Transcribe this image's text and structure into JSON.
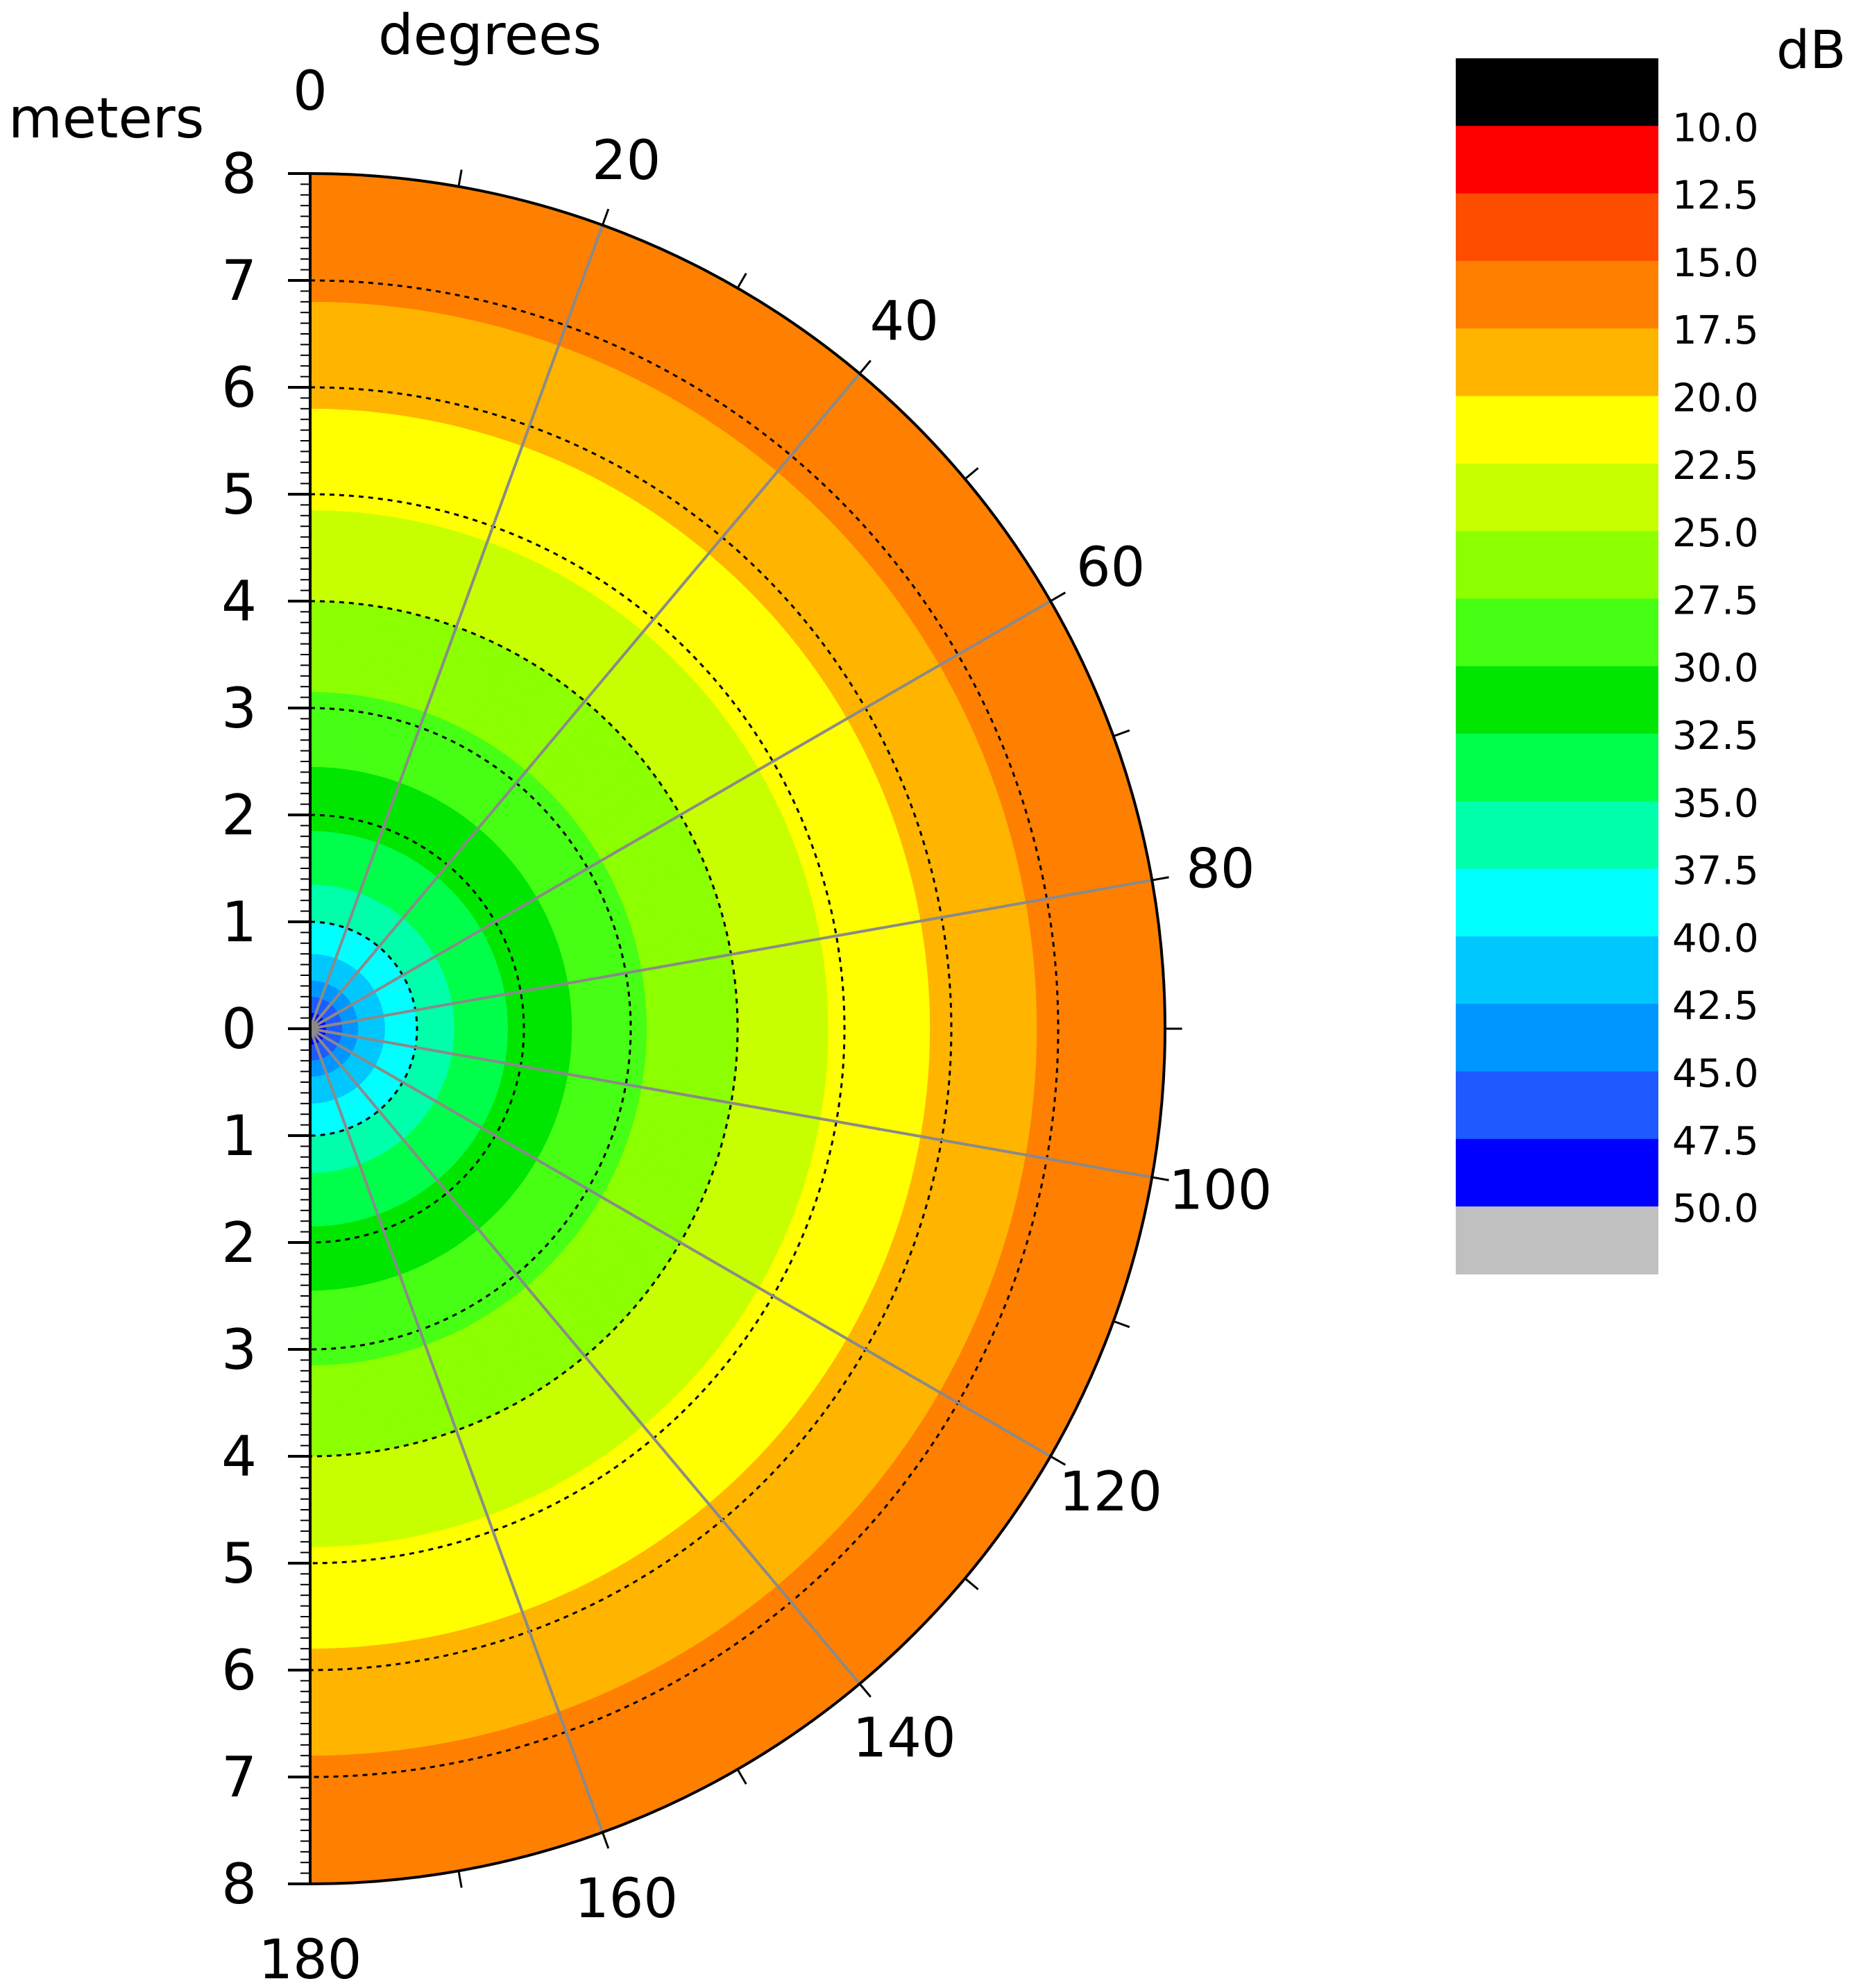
{
  "chart_data": {
    "type": "heatmap",
    "coordinate_system": "polar-half",
    "theta_label": "degrees",
    "r_label": "meters",
    "colorbar_label": "dB",
    "theta_range": [
      0,
      180
    ],
    "theta_ticks": [
      0,
      20,
      40,
      60,
      80,
      100,
      120,
      140,
      160,
      180
    ],
    "r_range": [
      0,
      8
    ],
    "r_tick_labels": [
      "8",
      "7",
      "6",
      "5",
      "4",
      "3",
      "2",
      "1",
      "0",
      "1",
      "2",
      "3",
      "4",
      "5",
      "6",
      "7",
      "8"
    ],
    "dashed_rings": [
      1,
      2,
      3,
      4,
      5,
      6,
      7
    ],
    "colorbar": {
      "boundaries": [
        "10.0",
        "12.5",
        "15.0",
        "17.5",
        "20.0",
        "22.5",
        "25.0",
        "27.5",
        "30.0",
        "32.5",
        "35.0",
        "37.5",
        "40.0",
        "42.5",
        "45.0",
        "47.5",
        "50.0"
      ],
      "colors": [
        "#000000",
        "#ff0000",
        "#ff4d00",
        "#ff7f00",
        "#ffb400",
        "#ffff00",
        "#c8ff00",
        "#8cff00",
        "#46ff14",
        "#00e600",
        "#00ff4b",
        "#00ffaa",
        "#00ffff",
        "#00c8ff",
        "#0096ff",
        "#1e5aff",
        "#0000ff",
        "#c0c0c0"
      ]
    },
    "r_profile": [
      {
        "r": 0.0,
        "db": 50.0
      },
      {
        "r": 0.2,
        "db": 47.0
      },
      {
        "r": 0.5,
        "db": 42.0
      },
      {
        "r": 0.9,
        "db": 38.0
      },
      {
        "r": 1.5,
        "db": 34.0
      },
      {
        "r": 2.2,
        "db": 31.0
      },
      {
        "r": 3.0,
        "db": 28.0
      },
      {
        "r": 4.0,
        "db": 25.0
      },
      {
        "r": 5.0,
        "db": 22.0
      },
      {
        "r": 6.0,
        "db": 19.5
      },
      {
        "r": 7.0,
        "db": 17.0
      },
      {
        "r": 8.0,
        "db": 15.0
      }
    ]
  }
}
